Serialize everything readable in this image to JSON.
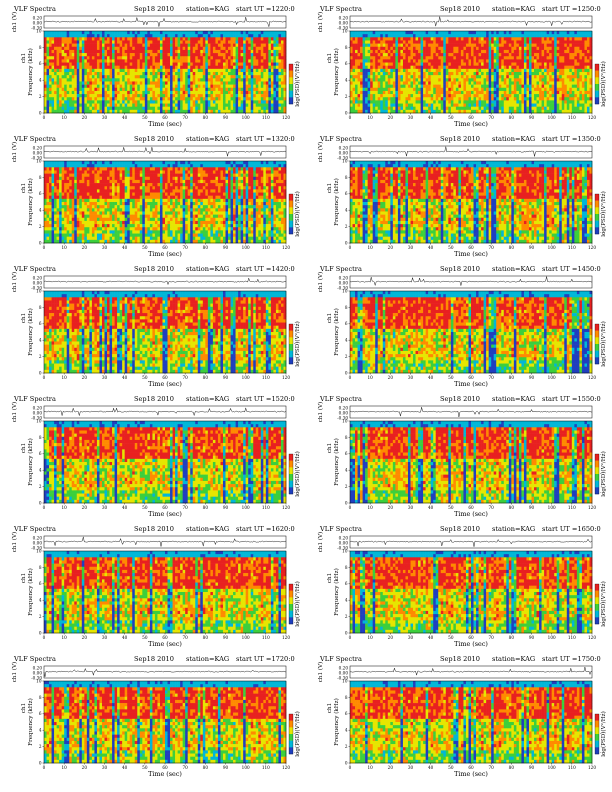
{
  "common": {
    "title": "VLF Spectra",
    "date": "Sep18 2010",
    "station": "station=KAG",
    "time_label_prefix": "start UT =",
    "xlabel": "Time  (sec)",
    "ylabel_top": "ch1 (V)",
    "ylabel_spec_line1": "ch1",
    "ylabel_spec_line2": "Frequency (kHz)",
    "cbar_label": "log(PSD)(V²/Hz)",
    "cbar_ticks": [
      "-",
      "-",
      "-"
    ]
  },
  "chart_data": [
    {
      "type": "heatmap",
      "start_ut": "1220:0",
      "xlim": [
        0,
        120
      ],
      "xticks": [
        0,
        10,
        20,
        30,
        40,
        50,
        60,
        70,
        80,
        90,
        100,
        110,
        120
      ],
      "top_ylim": [
        -0.3,
        0.3
      ],
      "top_yticks": [
        "0.20",
        "0.00",
        "-0.30"
      ],
      "spec_ylim": [
        0,
        10
      ],
      "spec_yticks": [
        0,
        2,
        4,
        6,
        8,
        10
      ],
      "colormap": [
        "#1f3fbf",
        "#00b7d8",
        "#3ccf3c",
        "#e6e600",
        "#ff8a00",
        "#e82020"
      ],
      "grid": false,
      "legend": "none"
    },
    {
      "type": "heatmap",
      "start_ut": "1250:0",
      "xlim": [
        0,
        120
      ],
      "xticks": [
        0,
        10,
        20,
        30,
        40,
        50,
        60,
        70,
        80,
        90,
        100,
        110,
        120
      ],
      "top_ylim": [
        -0.3,
        0.3
      ],
      "top_yticks": [
        "0.20",
        "0.00",
        "-0.30"
      ],
      "spec_ylim": [
        0,
        10
      ],
      "spec_yticks": [
        0,
        2,
        4,
        6,
        8,
        10
      ],
      "colormap": [
        "#1f3fbf",
        "#00b7d8",
        "#3ccf3c",
        "#e6e600",
        "#ff8a00",
        "#e82020"
      ],
      "grid": false,
      "legend": "none"
    },
    {
      "type": "heatmap",
      "start_ut": "1320:0",
      "xlim": [
        0,
        120
      ],
      "xticks": [
        0,
        10,
        20,
        30,
        40,
        50,
        60,
        70,
        80,
        90,
        100,
        110,
        120
      ],
      "top_ylim": [
        -0.3,
        0.3
      ],
      "top_yticks": [
        "0.20",
        "0.00",
        "-0.30"
      ],
      "spec_ylim": [
        0,
        10
      ],
      "spec_yticks": [
        0,
        2,
        4,
        6,
        8,
        10
      ],
      "colormap": [
        "#1f3fbf",
        "#00b7d8",
        "#3ccf3c",
        "#e6e600",
        "#ff8a00",
        "#e82020"
      ],
      "grid": false,
      "legend": "none"
    },
    {
      "type": "heatmap",
      "start_ut": "1350:0",
      "xlim": [
        0,
        120
      ],
      "xticks": [
        0,
        10,
        20,
        30,
        40,
        50,
        60,
        70,
        80,
        90,
        100,
        110,
        120
      ],
      "top_ylim": [
        -0.3,
        0.3
      ],
      "top_yticks": [
        "0.20",
        "0.00",
        "-0.30"
      ],
      "spec_ylim": [
        0,
        10
      ],
      "spec_yticks": [
        0,
        2,
        4,
        6,
        8,
        10
      ],
      "colormap": [
        "#1f3fbf",
        "#00b7d8",
        "#3ccf3c",
        "#e6e600",
        "#ff8a00",
        "#e82020"
      ],
      "grid": false,
      "legend": "none"
    },
    {
      "type": "heatmap",
      "start_ut": "1420:0",
      "xlim": [
        0,
        120
      ],
      "xticks": [
        0,
        10,
        20,
        30,
        40,
        50,
        60,
        70,
        80,
        90,
        100,
        110,
        120
      ],
      "top_ylim": [
        -0.3,
        0.3
      ],
      "top_yticks": [
        "0.20",
        "0.00",
        "-0.30"
      ],
      "spec_ylim": [
        0,
        10
      ],
      "spec_yticks": [
        0,
        2,
        4,
        6,
        8,
        10
      ],
      "colormap": [
        "#1f3fbf",
        "#00b7d8",
        "#3ccf3c",
        "#e6e600",
        "#ff8a00",
        "#e82020"
      ],
      "grid": false,
      "legend": "none"
    },
    {
      "type": "heatmap",
      "start_ut": "1450:0",
      "xlim": [
        0,
        120
      ],
      "xticks": [
        0,
        10,
        20,
        30,
        40,
        50,
        60,
        70,
        80,
        90,
        100,
        110,
        120
      ],
      "top_ylim": [
        -0.3,
        0.3
      ],
      "top_yticks": [
        "0.20",
        "0.00",
        "-0.30"
      ],
      "spec_ylim": [
        0,
        10
      ],
      "spec_yticks": [
        0,
        2,
        4,
        6,
        8,
        10
      ],
      "colormap": [
        "#1f3fbf",
        "#00b7d8",
        "#3ccf3c",
        "#e6e600",
        "#ff8a00",
        "#e82020"
      ],
      "grid": false,
      "legend": "none"
    },
    {
      "type": "heatmap",
      "start_ut": "1520:0",
      "xlim": [
        0,
        120
      ],
      "xticks": [
        0,
        10,
        20,
        30,
        40,
        50,
        60,
        70,
        80,
        90,
        100,
        110,
        120
      ],
      "top_ylim": [
        -0.3,
        0.3
      ],
      "top_yticks": [
        "0.20",
        "0.00",
        "-0.30"
      ],
      "spec_ylim": [
        0,
        10
      ],
      "spec_yticks": [
        0,
        2,
        4,
        6,
        8,
        10
      ],
      "colormap": [
        "#1f3fbf",
        "#00b7d8",
        "#3ccf3c",
        "#e6e600",
        "#ff8a00",
        "#e82020"
      ],
      "grid": false,
      "legend": "none"
    },
    {
      "type": "heatmap",
      "start_ut": "1550:0",
      "xlim": [
        0,
        120
      ],
      "xticks": [
        0,
        10,
        20,
        30,
        40,
        50,
        60,
        70,
        80,
        90,
        100,
        110,
        120
      ],
      "top_ylim": [
        -0.3,
        0.3
      ],
      "top_yticks": [
        "0.20",
        "0.00",
        "-0.30"
      ],
      "spec_ylim": [
        0,
        10
      ],
      "spec_yticks": [
        0,
        2,
        4,
        6,
        8,
        10
      ],
      "colormap": [
        "#1f3fbf",
        "#00b7d8",
        "#3ccf3c",
        "#e6e600",
        "#ff8a00",
        "#e82020"
      ],
      "grid": false,
      "legend": "none"
    },
    {
      "type": "heatmap",
      "start_ut": "1620:0",
      "xlim": [
        0,
        120
      ],
      "xticks": [
        0,
        10,
        20,
        30,
        40,
        50,
        60,
        70,
        80,
        90,
        100,
        110,
        120
      ],
      "top_ylim": [
        -0.3,
        0.3
      ],
      "top_yticks": [
        "0.20",
        "0.00",
        "-0.30"
      ],
      "spec_ylim": [
        0,
        10
      ],
      "spec_yticks": [
        0,
        2,
        4,
        6,
        8,
        10
      ],
      "colormap": [
        "#1f3fbf",
        "#00b7d8",
        "#3ccf3c",
        "#e6e600",
        "#ff8a00",
        "#e82020"
      ],
      "grid": false,
      "legend": "none"
    },
    {
      "type": "heatmap",
      "start_ut": "1650:0",
      "xlim": [
        0,
        120
      ],
      "xticks": [
        0,
        10,
        20,
        30,
        40,
        50,
        60,
        70,
        80,
        90,
        100,
        110,
        120
      ],
      "top_ylim": [
        -0.3,
        0.3
      ],
      "top_yticks": [
        "0.20",
        "0.00",
        "-0.30"
      ],
      "spec_ylim": [
        0,
        10
      ],
      "spec_yticks": [
        0,
        2,
        4,
        6,
        8,
        10
      ],
      "colormap": [
        "#1f3fbf",
        "#00b7d8",
        "#3ccf3c",
        "#e6e600",
        "#ff8a00",
        "#e82020"
      ],
      "grid": false,
      "legend": "none"
    },
    {
      "type": "heatmap",
      "start_ut": "1720:0",
      "xlim": [
        0,
        120
      ],
      "xticks": [
        0,
        10,
        20,
        30,
        40,
        50,
        60,
        70,
        80,
        90,
        100,
        110,
        120
      ],
      "top_ylim": [
        -0.3,
        0.3
      ],
      "top_yticks": [
        "0.20",
        "0.00",
        "-0.30"
      ],
      "spec_ylim": [
        0,
        10
      ],
      "spec_yticks": [
        0,
        2,
        4,
        6,
        8,
        10
      ],
      "colormap": [
        "#1f3fbf",
        "#00b7d8",
        "#3ccf3c",
        "#e6e600",
        "#ff8a00",
        "#e82020"
      ],
      "grid": false,
      "legend": "none"
    },
    {
      "type": "heatmap",
      "start_ut": "1750:0",
      "xlim": [
        0,
        120
      ],
      "xticks": [
        0,
        10,
        20,
        30,
        40,
        50,
        60,
        70,
        80,
        90,
        100,
        110,
        120
      ],
      "top_ylim": [
        -0.3,
        0.3
      ],
      "top_yticks": [
        "0.20",
        "0.00",
        "-0.30"
      ],
      "spec_ylim": [
        0,
        10
      ],
      "spec_yticks": [
        0,
        2,
        4,
        6,
        8,
        10
      ],
      "colormap": [
        "#1f3fbf",
        "#00b7d8",
        "#3ccf3c",
        "#e6e600",
        "#ff8a00",
        "#e82020"
      ],
      "grid": false,
      "legend": "none"
    }
  ]
}
